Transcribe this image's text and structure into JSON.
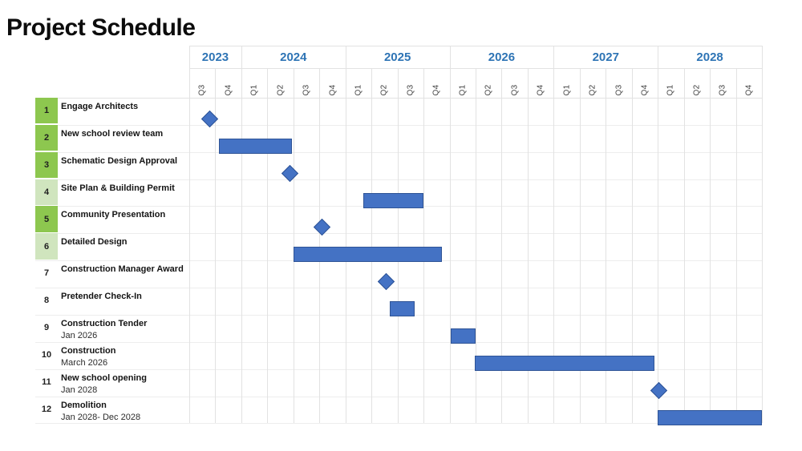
{
  "colors": {
    "year_text": "#2E74B5",
    "bar_fill": "#4472C4",
    "bar_border": "#2F5496",
    "row_green_bright": "#8DC74F",
    "row_green_pale": "#D0E5BE",
    "grid_line": "#E2E2E2",
    "row_line": "#EDEDED"
  },
  "chart_data": {
    "type": "gantt",
    "title": "Project Schedule",
    "x_axis": {
      "unit": "quarters",
      "start": "Q3 2023",
      "end": "Q4 2028",
      "total_quarters": 22,
      "years": [
        {
          "label": "2023",
          "quarters": [
            "Q3",
            "Q4"
          ]
        },
        {
          "label": "2024",
          "quarters": [
            "Q1",
            "Q2",
            "Q3",
            "Q4"
          ]
        },
        {
          "label": "2025",
          "quarters": [
            "Q1",
            "Q2",
            "Q3",
            "Q4"
          ]
        },
        {
          "label": "2026",
          "quarters": [
            "Q1",
            "Q2",
            "Q3",
            "Q4"
          ]
        },
        {
          "label": "2027",
          "quarters": [
            "Q1",
            "Q2",
            "Q3",
            "Q4"
          ]
        },
        {
          "label": "2028",
          "quarters": [
            "Q1",
            "Q2",
            "Q3",
            "Q4"
          ]
        }
      ]
    },
    "tasks": [
      {
        "id": "1",
        "name": "Engage Architects",
        "sub": "",
        "num_bg": "bright",
        "shape": "milestone",
        "start_q": 0.8,
        "end_q": 0.8,
        "approx_dates": "Sep 2023"
      },
      {
        "id": "2",
        "name": "New school review team",
        "sub": "",
        "num_bg": "bright",
        "shape": "bar",
        "start_q": 1.15,
        "end_q": 3.95,
        "approx_dates": "Oct 2023 - Jun 2024"
      },
      {
        "id": "3",
        "name": "Schematic Design Approval",
        "sub": "",
        "num_bg": "bright",
        "shape": "milestone",
        "start_q": 3.87,
        "end_q": 3.87,
        "approx_dates": "Jun 2024"
      },
      {
        "id": "4",
        "name": "Site Plan & Building Permit",
        "sub": "",
        "num_bg": "pale",
        "shape": "bar",
        "start_q": 6.7,
        "end_q": 9.0,
        "approx_dates": "Mar 2025 - Sep 2025"
      },
      {
        "id": "5",
        "name": "Community Presentation",
        "sub": "",
        "num_bg": "bright",
        "shape": "milestone",
        "start_q": 5.1,
        "end_q": 5.1,
        "approx_dates": "Oct 2024"
      },
      {
        "id": "6",
        "name": "Detailed Design",
        "sub": "",
        "num_bg": "pale",
        "shape": "bar",
        "start_q": 4.0,
        "end_q": 9.72,
        "approx_dates": "Jul 2024 - Nov 2025"
      },
      {
        "id": "7",
        "name": "Construction Manager Award",
        "sub": "",
        "num_bg": "none",
        "shape": "milestone",
        "start_q": 7.57,
        "end_q": 7.57,
        "approx_dates": "May 2025"
      },
      {
        "id": "8",
        "name": "Pretender Check-In",
        "sub": "",
        "num_bg": "none",
        "shape": "bar",
        "start_q": 7.7,
        "end_q": 8.67,
        "approx_dates": "Jun 2025 - Aug 2025"
      },
      {
        "id": "9",
        "name": "Construction Tender",
        "sub": "Jan 2026",
        "num_bg": "none",
        "shape": "bar",
        "start_q": 10.03,
        "end_q": 10.99,
        "approx_dates": "Q1 2026"
      },
      {
        "id": "10",
        "name": "Construction",
        "sub": "March 2026",
        "num_bg": "none",
        "shape": "bar",
        "start_q": 10.97,
        "end_q": 17.86,
        "approx_dates": "Mar 2026 - Nov 2027"
      },
      {
        "id": "11",
        "name": "New school opening",
        "sub": "Jan 2028",
        "num_bg": "none",
        "shape": "milestone",
        "start_q": 18.03,
        "end_q": 18.03,
        "approx_dates": "Jan 2028"
      },
      {
        "id": "12",
        "name": "Demolition",
        "sub": "Jan 2028- Dec 2028",
        "num_bg": "none",
        "shape": "bar",
        "start_q": 18.0,
        "end_q": 22.0,
        "approx_dates": "Jan 2028 - Dec 2028"
      }
    ]
  }
}
